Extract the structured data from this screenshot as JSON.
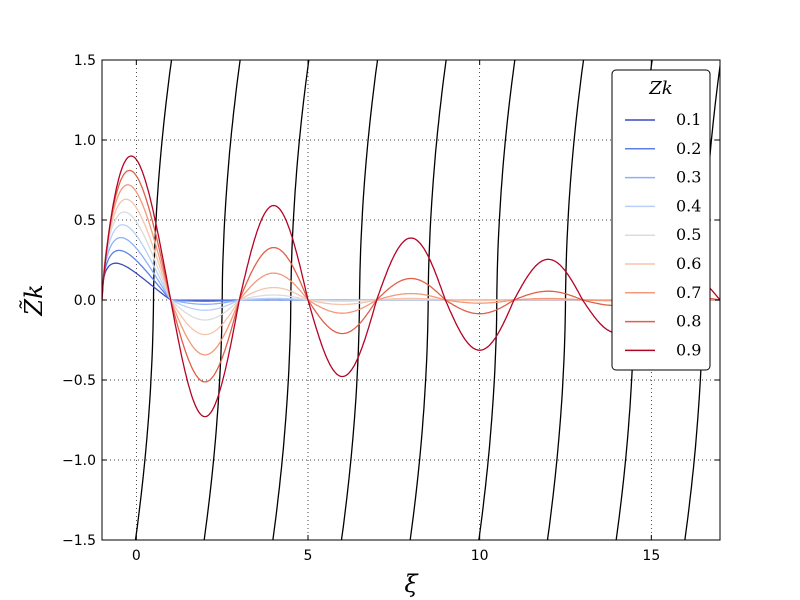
{
  "chart_data": {
    "type": "line",
    "title": "",
    "xlabel": "ξ",
    "ylabel": "Z̃k",
    "xlim": [
      -1,
      17
    ],
    "ylim": [
      -1.5,
      1.5
    ],
    "xticks": [
      0,
      5,
      10,
      15
    ],
    "yticks": [
      -1.5,
      -1.0,
      -0.5,
      0.0,
      0.5,
      1.0,
      1.5
    ],
    "xtick_labels": [
      "0",
      "5",
      "10",
      "15"
    ],
    "ytick_labels": [
      "−1.5",
      "−1.0",
      "−0.5",
      "0.0",
      "0.5",
      "1.0",
      "1.5"
    ],
    "grid": true,
    "legend": {
      "title": "Zk",
      "placement": "top-right",
      "entries": [
        "0.1",
        "0.2",
        "0.3",
        "0.4",
        "0.5",
        "0.6",
        "0.7",
        "0.8",
        "0.9"
      ]
    },
    "series_colors": [
      "#3b4cc0",
      "#5f7fe8",
      "#8db0fe",
      "#b8d0f9",
      "#dddcdc",
      "#f5c4ac",
      "#f4987a",
      "#de6048",
      "#b40426"
    ],
    "background_color": "#000000",
    "series": [
      {
        "name": "0.1",
        "peak_x": -0.6,
        "peak_y": 0.23
      },
      {
        "name": "0.2",
        "peak_x": -0.5,
        "peak_y": 0.31
      },
      {
        "name": "0.3",
        "peak_x": -0.45,
        "peak_y": 0.39
      },
      {
        "name": "0.4",
        "peak_x": -0.4,
        "peak_y": 0.47
      },
      {
        "name": "0.5",
        "peak_x": -0.35,
        "peak_y": 0.55
      },
      {
        "name": "0.6",
        "peak_x": -0.3,
        "peak_y": 0.63
      },
      {
        "name": "0.7",
        "peak_x": -0.25,
        "peak_y": 0.72
      },
      {
        "name": "0.8",
        "peak_x": -0.2,
        "peak_y": 0.81
      },
      {
        "name": "0.9",
        "peak_x": -0.15,
        "peak_y": 0.9
      }
    ],
    "zero_crossings_x": [
      1,
      3,
      5,
      7,
      9,
      11,
      13,
      15,
      17
    ],
    "background_branch_crossings_x": [
      0.5,
      2.5,
      4.5,
      6.5,
      8.5,
      10.5,
      12.5,
      14.5,
      16.5
    ]
  }
}
